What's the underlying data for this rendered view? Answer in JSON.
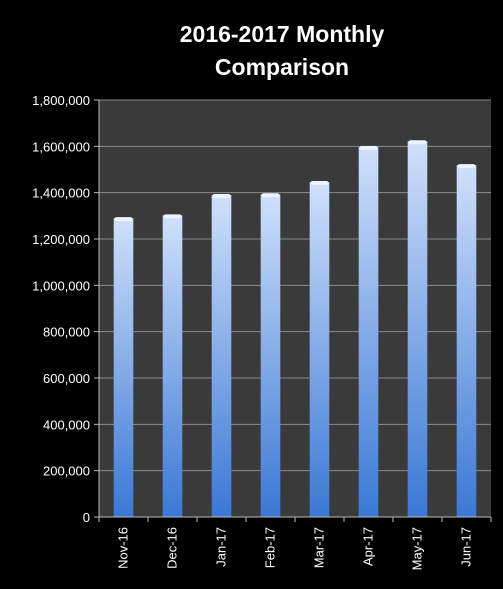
{
  "chart_data": {
    "type": "bar",
    "title": "2016-2017 Monthly Comparison",
    "title_lines": [
      "2016-2017 Monthly",
      "Comparison"
    ],
    "categories": [
      "Nov-16",
      "Dec-16",
      "Jan-17",
      "Feb-17",
      "Mar-17",
      "Apr-17",
      "May-17",
      "Jun-17"
    ],
    "values": [
      1290000,
      1302000,
      1390000,
      1393000,
      1446000,
      1597000,
      1622000,
      1519000
    ],
    "ylim": [
      0,
      1800000
    ],
    "yticks": [
      "0",
      "200,000",
      "400,000",
      "600,000",
      "800,000",
      "1,000,000",
      "1,200,000",
      "1,400,000",
      "1,600,000",
      "1,800,000"
    ],
    "xlabel": "",
    "ylabel": "",
    "grid": true,
    "legend": "none",
    "colors": {
      "background": "#000000",
      "plot_area": "#3a3a3a",
      "grid": "#8a8a8a",
      "bar_top": "#cfe0fb",
      "bar_bottom": "#3a78d6",
      "text": "#ffffff"
    }
  }
}
